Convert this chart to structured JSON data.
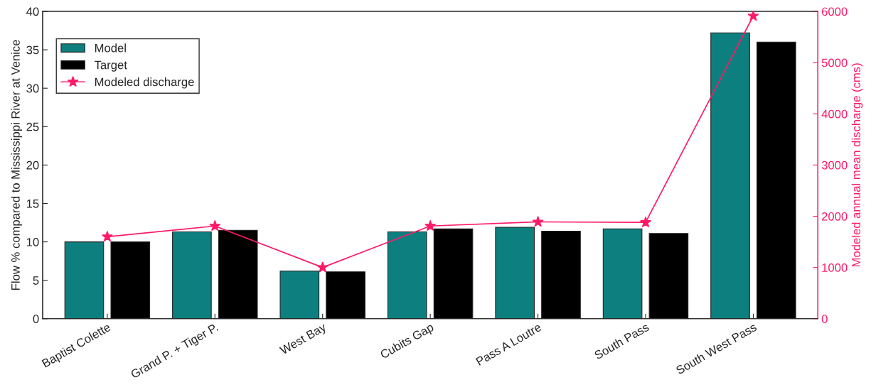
{
  "chart_data": {
    "type": "bar",
    "categories": [
      "Baptist Colette",
      "Grand P. + Tiger P.",
      "West Bay",
      "Cubits Gap",
      "Pass A Loutre",
      "South Pass",
      "South West Pass"
    ],
    "ylabel": "Flow % compared to Mississippi River at Venice",
    "y2label": "Modeled annual mean discharge (cms)",
    "series": [
      {
        "name": "Model",
        "color": "#0e7f7f",
        "values": [
          10.0,
          11.3,
          6.2,
          11.3,
          11.9,
          11.7,
          37.2
        ]
      },
      {
        "name": "Target",
        "color": "#000000",
        "values": [
          10.0,
          11.5,
          6.1,
          11.7,
          11.4,
          11.1,
          36.0
        ]
      },
      {
        "name": "Modeled discharge",
        "type": "line",
        "axis": "y2",
        "color": "#ff1a66",
        "marker": "star",
        "values": [
          1600,
          1810,
          1000,
          1810,
          1890,
          1880,
          5910
        ]
      }
    ],
    "ylim": [
      0,
      40
    ],
    "yticks": [
      0,
      5,
      10,
      15,
      20,
      25,
      30,
      35,
      40
    ],
    "y2lim": [
      0,
      6000
    ],
    "y2ticks": [
      0,
      1000,
      2000,
      3000,
      4000,
      5000,
      6000
    ],
    "legend": "top left",
    "grid": false
  }
}
